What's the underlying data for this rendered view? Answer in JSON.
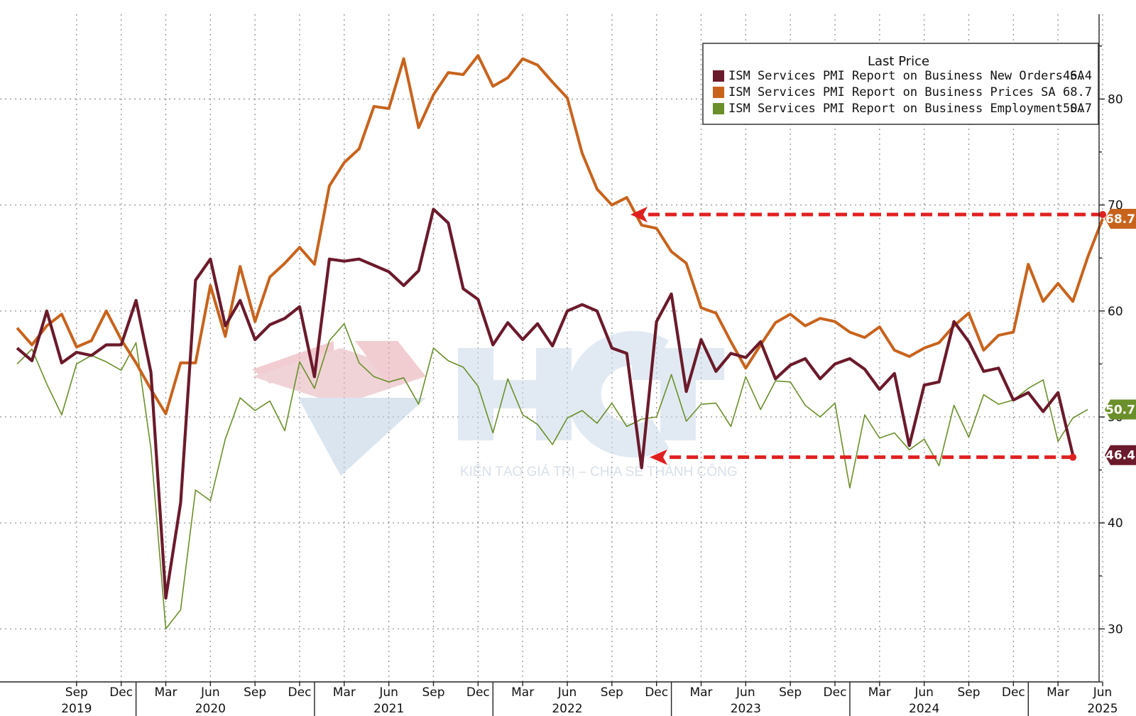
{
  "chart_data": {
    "type": "line",
    "x_start": "2019-06",
    "x_labels": [
      {
        "month": "Sep",
        "year": "2019",
        "date": "2019-09"
      },
      {
        "month": "Dec",
        "year": "",
        "date": "2019-12"
      },
      {
        "month": "Mar",
        "year": "",
        "date": "2020-03"
      },
      {
        "month": "Jun",
        "year": "2020",
        "date": "2020-06"
      },
      {
        "month": "Sep",
        "year": "",
        "date": "2020-09"
      },
      {
        "month": "Dec",
        "year": "",
        "date": "2020-12"
      },
      {
        "month": "Mar",
        "year": "",
        "date": "2021-03"
      },
      {
        "month": "Jun",
        "year": "2021",
        "date": "2021-06"
      },
      {
        "month": "Sep",
        "year": "",
        "date": "2021-09"
      },
      {
        "month": "Dec",
        "year": "",
        "date": "2021-12"
      },
      {
        "month": "Mar",
        "year": "",
        "date": "2022-03"
      },
      {
        "month": "Jun",
        "year": "2022",
        "date": "2022-06"
      },
      {
        "month": "Sep",
        "year": "",
        "date": "2022-09"
      },
      {
        "month": "Dec",
        "year": "",
        "date": "2022-12"
      },
      {
        "month": "Mar",
        "year": "",
        "date": "2023-03"
      },
      {
        "month": "Jun",
        "year": "2023",
        "date": "2023-06"
      },
      {
        "month": "Sep",
        "year": "",
        "date": "2023-09"
      },
      {
        "month": "Dec",
        "year": "",
        "date": "2023-12"
      },
      {
        "month": "Mar",
        "year": "",
        "date": "2024-03"
      },
      {
        "month": "Jun",
        "year": "2024",
        "date": "2024-06"
      },
      {
        "month": "Sep",
        "year": "",
        "date": "2024-09"
      },
      {
        "month": "Dec",
        "year": "",
        "date": "2024-12"
      },
      {
        "month": "Mar",
        "year": "",
        "date": "2025-03"
      },
      {
        "month": "Jun",
        "year": "2025",
        "date": "2025-06"
      }
    ],
    "y_ticks": [
      30,
      40,
      50,
      60,
      70,
      80
    ],
    "ylim": [
      25,
      88
    ],
    "xlim": [
      "2019-06",
      "2025-06"
    ],
    "grid": true,
    "legend_position": "top-right",
    "legend_title": "Last Price",
    "series": [
      {
        "name": "ISM Services PMI Report on Business New Orders SA",
        "last": "46.4",
        "color": "#6b1a2b",
        "width": 4,
        "values": [
          [
            "2019-06",
            56.5
          ],
          [
            "2019-07",
            55.3
          ],
          [
            "2019-08",
            60.0
          ],
          [
            "2019-09",
            55.1
          ],
          [
            "2019-10",
            56.1
          ],
          [
            "2019-11",
            55.8
          ],
          [
            "2019-12",
            56.8
          ],
          [
            "2020-01",
            56.8
          ],
          [
            "2020-02",
            61.0
          ],
          [
            "2020-03",
            54.2
          ],
          [
            "2020-04",
            32.9
          ],
          [
            "2020-05",
            41.9
          ],
          [
            "2020-06",
            62.9
          ],
          [
            "2020-07",
            64.9
          ],
          [
            "2020-08",
            58.6
          ],
          [
            "2020-09",
            61.0
          ],
          [
            "2020-10",
            57.3
          ],
          [
            "2020-11",
            58.7
          ],
          [
            "2020-12",
            59.3
          ],
          [
            "2021-01",
            60.4
          ],
          [
            "2021-02",
            53.8
          ],
          [
            "2021-03",
            64.9
          ],
          [
            "2021-04",
            64.7
          ],
          [
            "2021-05",
            64.9
          ],
          [
            "2021-06",
            64.3
          ],
          [
            "2021-07",
            63.7
          ],
          [
            "2021-08",
            62.4
          ],
          [
            "2021-09",
            63.8
          ],
          [
            "2021-10",
            69.6
          ],
          [
            "2021-11",
            68.3
          ],
          [
            "2021-12",
            62.1
          ],
          [
            "2021-13",
            61.7
          ]
        ]
      }
    ]
  }
}
